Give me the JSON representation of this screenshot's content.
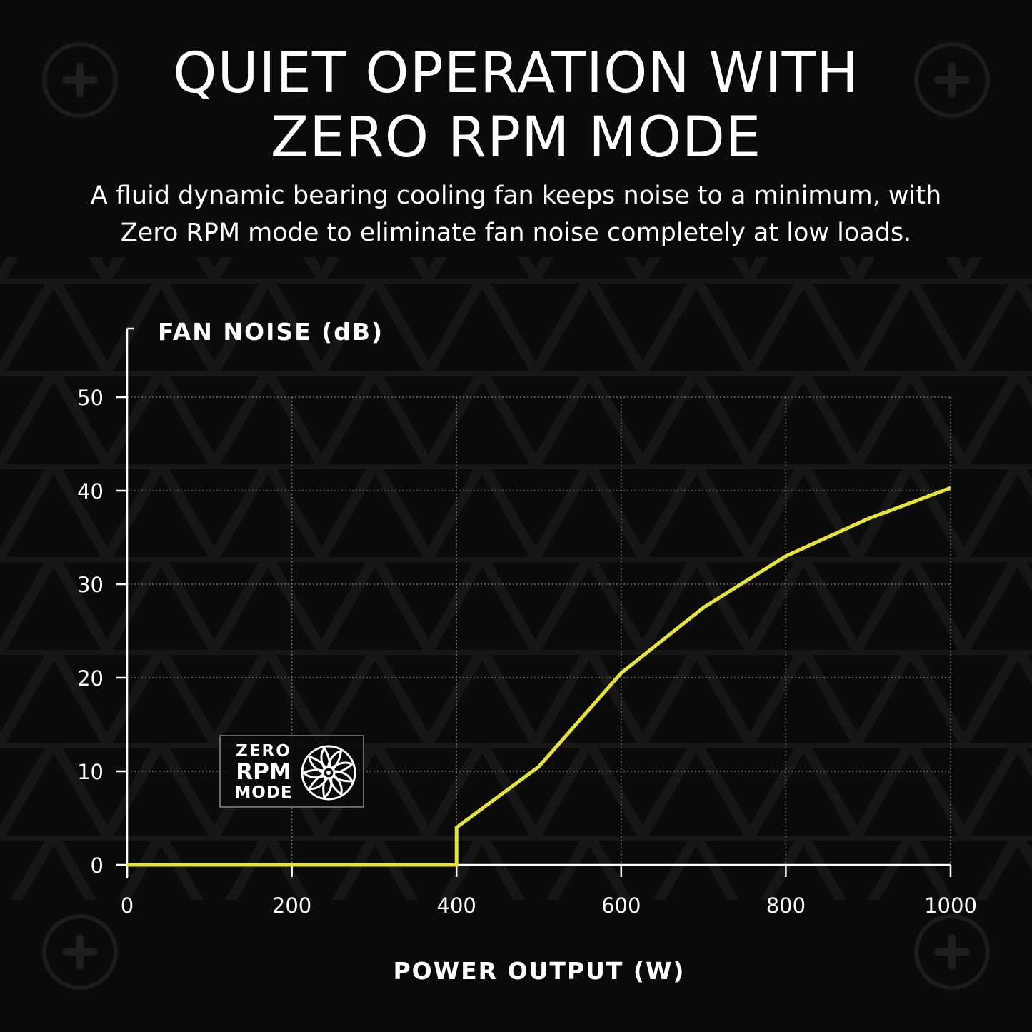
{
  "headline": {
    "line1": "QUIET OPERATION WITH",
    "line2": "ZERO RPM MODE"
  },
  "subtitle": {
    "line1": "A fluid dynamic bearing cooling fan keeps noise to a minimum, with",
    "line2": "Zero RPM mode to eliminate fan noise completely at low loads."
  },
  "badge": {
    "line1": "ZERO",
    "line2": "RPM",
    "line3": "MODE",
    "icon": "fan-icon"
  },
  "colors": {
    "background": "#0b0b0b",
    "text": "#ffffff",
    "line": "#e6e33a",
    "grid": "#6e6e6e"
  },
  "chart_data": {
    "type": "line",
    "ylabel": "FAN NOISE (dB)",
    "xlabel": "POWER OUTPUT (W)",
    "xlim": [
      0,
      1000
    ],
    "ylim": [
      0,
      50
    ],
    "x_ticks": [
      0,
      200,
      400,
      600,
      800,
      1000
    ],
    "y_ticks": [
      0,
      10,
      20,
      30,
      40,
      50
    ],
    "grid": true,
    "series": [
      {
        "x": [
          0,
          400,
          400,
          500,
          600,
          700,
          800,
          900,
          1000
        ],
        "y": [
          0,
          0,
          4,
          10.5,
          20.5,
          27.5,
          33,
          37,
          40.3
        ]
      }
    ]
  }
}
